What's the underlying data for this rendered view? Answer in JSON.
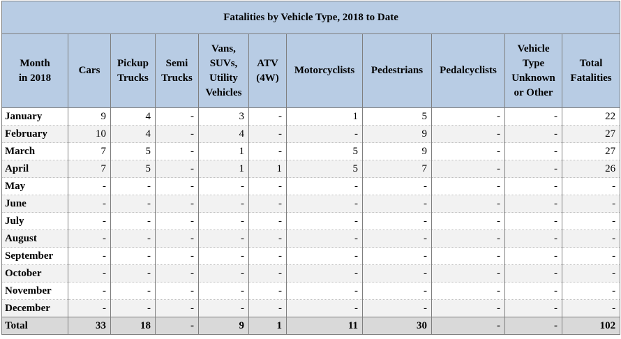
{
  "table": {
    "title": "Fatalities by Vehicle Type, 2018 to Date",
    "headers": [
      "Month\nin 2018",
      "Cars",
      "Pickup\nTrucks",
      "Semi\nTrucks",
      "Vans,\nSUVs,\nUtility\nVehicles",
      "ATV\n(4W)",
      "Motorcyclists",
      "Pedestrians",
      "Pedalcyclists",
      "Vehicle\nType\nUnknown\nor Other",
      "Total\nFatalities"
    ],
    "rows": [
      [
        "January",
        "9",
        "4",
        "-",
        "3",
        "-",
        "1",
        "5",
        "-",
        "-",
        "22"
      ],
      [
        "February",
        "10",
        "4",
        "-",
        "4",
        "-",
        "-",
        "9",
        "-",
        "-",
        "27"
      ],
      [
        "March",
        "7",
        "5",
        "-",
        "1",
        "-",
        "5",
        "9",
        "-",
        "-",
        "27"
      ],
      [
        "April",
        "7",
        "5",
        "-",
        "1",
        "1",
        "5",
        "7",
        "-",
        "-",
        "26"
      ],
      [
        "May",
        "-",
        "-",
        "-",
        "-",
        "-",
        "-",
        "-",
        "-",
        "-",
        "-"
      ],
      [
        "June",
        "-",
        "-",
        "-",
        "-",
        "-",
        "-",
        "-",
        "-",
        "-",
        "-"
      ],
      [
        "July",
        "-",
        "-",
        "-",
        "-",
        "-",
        "-",
        "-",
        "-",
        "-",
        "-"
      ],
      [
        "August",
        "-",
        "-",
        "-",
        "-",
        "-",
        "-",
        "-",
        "-",
        "-",
        "-"
      ],
      [
        "September",
        "-",
        "-",
        "-",
        "-",
        "-",
        "-",
        "-",
        "-",
        "-",
        "-"
      ],
      [
        "October",
        "-",
        "-",
        "-",
        "-",
        "-",
        "-",
        "-",
        "-",
        "-",
        "-"
      ],
      [
        "November",
        "-",
        "-",
        "-",
        "-",
        "-",
        "-",
        "-",
        "-",
        "-",
        "-"
      ],
      [
        "December",
        "-",
        "-",
        "-",
        "-",
        "-",
        "-",
        "-",
        "-",
        "-",
        "-"
      ]
    ],
    "total": [
      "Total",
      "33",
      "18",
      "-",
      "9",
      "1",
      "11",
      "30",
      "-",
      "-",
      "102"
    ]
  }
}
